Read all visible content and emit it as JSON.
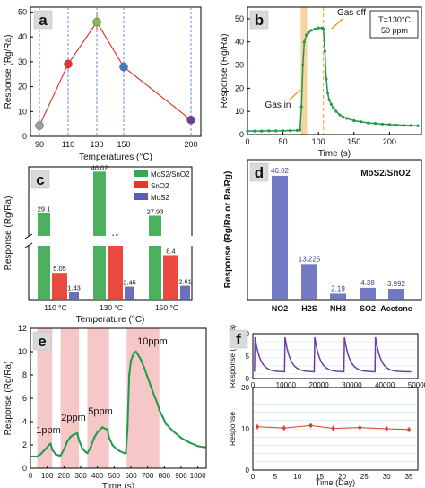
{
  "panels": {
    "a": {
      "letter": "a"
    },
    "b": {
      "letter": "b"
    },
    "c": {
      "letter": "c"
    },
    "d": {
      "letter": "d"
    },
    "e": {
      "letter": "e"
    },
    "f": {
      "letter": "f"
    }
  },
  "colors": {
    "a_line": "#e03b2c",
    "b_line": "#1f9a4c",
    "b_band": "#f6d3a0",
    "b_gasoff": "#f39c12",
    "c_mos2sno2": "#37a84e",
    "c_sno2": "#e8352b",
    "c_mos2": "#5c5fb0",
    "d_bar": "#5b61b7",
    "e_line": "#1f9a4c",
    "e_band": "#f6c7c7",
    "f_line": "#6a3fa3",
    "f_stab": "#e03b2c"
  },
  "chart_data": [
    {
      "id": "a",
      "type": "scatter",
      "title": "",
      "xlabel": "Temperatures (°C)",
      "ylabel": "Response (Rg/Ra)",
      "x_tick_labels": [
        "90",
        "110",
        "130",
        "150",
        "200"
      ],
      "y_ticks": [
        0,
        10,
        20,
        30,
        40,
        50
      ],
      "ylim": [
        0,
        52
      ],
      "grid": "dashed vertical lines at each temperature",
      "points": [
        {
          "x": "90",
          "y": 4.3,
          "err": 1.0,
          "color": "#9e9e9e"
        },
        {
          "x": "110",
          "y": 29.1,
          "err": 2.5,
          "color": "#e8352b"
        },
        {
          "x": "130",
          "y": 46.02,
          "err": 3.5,
          "color": "#7cbf4a"
        },
        {
          "x": "150",
          "y": 27.93,
          "err": 2.0,
          "color": "#3a7cc4"
        },
        {
          "x": "200",
          "y": 6.6,
          "err": 0.5,
          "color": "#6a3fa3"
        }
      ]
    },
    {
      "id": "b",
      "type": "line",
      "xlabel": "Time (s)",
      "ylabel": "Response (Rg/Ra)",
      "xlim": [
        0,
        245
      ],
      "ylim": [
        0,
        55
      ],
      "x_ticks": [
        0,
        50,
        100,
        150,
        200
      ],
      "y_ticks": [
        0,
        10,
        20,
        30,
        40,
        50
      ],
      "legend_box": [
        "T=130°C",
        "50 ppm"
      ],
      "annotations": [
        "Gas in",
        "Gas off"
      ],
      "gas_in_s": 75,
      "gas_off_s": 107,
      "x": [
        0,
        10,
        20,
        30,
        40,
        50,
        60,
        70,
        74,
        76,
        78,
        80,
        83,
        86,
        90,
        95,
        100,
        105,
        107,
        109,
        111,
        113,
        115,
        118,
        121,
        125,
        130,
        135,
        140,
        150,
        160,
        170,
        180,
        190,
        200,
        210,
        220,
        230,
        240
      ],
      "y": [
        1.5,
        1.5,
        1.5,
        1.6,
        1.6,
        1.6,
        1.7,
        1.8,
        2.0,
        12,
        30,
        40,
        43,
        44,
        45,
        45.5,
        46,
        46,
        45.5,
        36,
        24,
        18,
        15,
        13,
        11.5,
        10,
        8.5,
        7.5,
        7,
        6,
        5.5,
        5,
        4.8,
        4.5,
        4.3,
        4.1,
        4.0,
        3.9,
        3.8
      ]
    },
    {
      "id": "c",
      "type": "bar",
      "xlabel": "Temperature (°C)",
      "ylabel": "Response (Rg/Ra)",
      "categories": [
        "110 °C",
        "130 °C",
        "150 °C"
      ],
      "series": [
        {
          "name": "MoS2/SnO2",
          "values": [
            29.1,
            46.02,
            27.93
          ]
        },
        {
          "name": "SnO2",
          "values": [
            5.05,
            15,
            8.4
          ]
        },
        {
          "name": "MoS2",
          "values": [
            1.43,
            2.45,
            2.61
          ]
        }
      ],
      "value_labels": [
        [
          "29.1",
          "46.02",
          "27.93"
        ],
        [
          "5.05",
          "15",
          "8.4"
        ],
        [
          "1.43",
          "2.45",
          "2.61"
        ]
      ],
      "axis_break": true,
      "legend_placement": "top-right"
    },
    {
      "id": "d",
      "type": "bar",
      "title": "MoS2/SnO2",
      "ylabel": "Response (Rg/Ra or Ra/Rg)",
      "categories": [
        "NO2",
        "H2S",
        "NH3",
        "SO2",
        "Acetone"
      ],
      "values": [
        46.02,
        13.225,
        2.19,
        4.38,
        3.992
      ],
      "value_labels": [
        "46.02",
        "13.225",
        "2.19",
        "4.38",
        "3.992"
      ],
      "ylim": [
        0,
        52
      ]
    },
    {
      "id": "e",
      "type": "line",
      "xlabel": "Time (s)",
      "ylabel": "Response (Rg/Ra)",
      "xlim": [
        0,
        1050
      ],
      "ylim": [
        0,
        12
      ],
      "x_ticks": [
        0,
        100,
        200,
        300,
        400,
        500,
        600,
        700,
        800,
        900,
        1000
      ],
      "y_ticks": [
        0,
        2,
        4,
        6,
        8,
        10,
        12
      ],
      "annotations": [
        "1ppm",
        "2ppm",
        "5ppm",
        "10ppm"
      ],
      "exposure_bands_s": [
        [
          40,
          130
        ],
        [
          180,
          290
        ],
        [
          340,
          470
        ],
        [
          575,
          770
        ]
      ],
      "x": [
        0,
        20,
        40,
        60,
        80,
        100,
        110,
        120,
        130,
        150,
        170,
        180,
        200,
        220,
        240,
        260,
        280,
        290,
        310,
        330,
        340,
        360,
        380,
        400,
        430,
        460,
        470,
        490,
        510,
        530,
        560,
        570,
        580,
        590,
        600,
        610,
        620,
        630,
        640,
        660,
        680,
        700,
        720,
        740,
        760,
        770,
        790,
        810,
        850,
        900,
        950,
        1000,
        1040
      ],
      "y": [
        1.0,
        1.0,
        1.0,
        1.2,
        1.5,
        1.8,
        2.0,
        2.1,
        1.6,
        1.2,
        1.1,
        1.1,
        1.6,
        2.3,
        2.7,
        2.9,
        3.0,
        2.4,
        1.7,
        1.4,
        1.3,
        1.8,
        2.6,
        3.1,
        3.5,
        3.3,
        2.6,
        2.0,
        1.7,
        1.5,
        1.3,
        1.3,
        3.5,
        8.0,
        9.2,
        9.6,
        9.9,
        10.0,
        9.8,
        9.3,
        8.6,
        7.8,
        7.0,
        6.2,
        5.5,
        5.0,
        4.4,
        3.8,
        3.2,
        2.6,
        2.2,
        1.9,
        1.8
      ]
    },
    {
      "id": "f_top",
      "type": "line",
      "ylabel": "Response (Rg/Ra)",
      "xlim": [
        0,
        50000
      ],
      "ylim": [
        0,
        10
      ],
      "x_ticks": [
        0,
        10000,
        20000,
        30000,
        40000,
        50000
      ],
      "y_ticks": [
        0,
        5,
        10
      ],
      "cycle_starts_s": [
        500,
        9600,
        18600,
        27600,
        37000
      ],
      "cycle_peak": 9.2,
      "cycle_baseline": 1.5
    },
    {
      "id": "f_bottom",
      "type": "line",
      "xlabel": "Time (Day)",
      "ylabel": "Response",
      "xlim": [
        0,
        37
      ],
      "ylim": [
        0,
        20
      ],
      "x_ticks": [
        0,
        5,
        10,
        15,
        20,
        25,
        30,
        35
      ],
      "y_ticks": [
        0,
        10,
        20
      ],
      "x": [
        1,
        7,
        13,
        18,
        24,
        30,
        35
      ],
      "y": [
        10.5,
        10.2,
        10.8,
        10.1,
        10.3,
        10.0,
        9.8
      ]
    }
  ]
}
